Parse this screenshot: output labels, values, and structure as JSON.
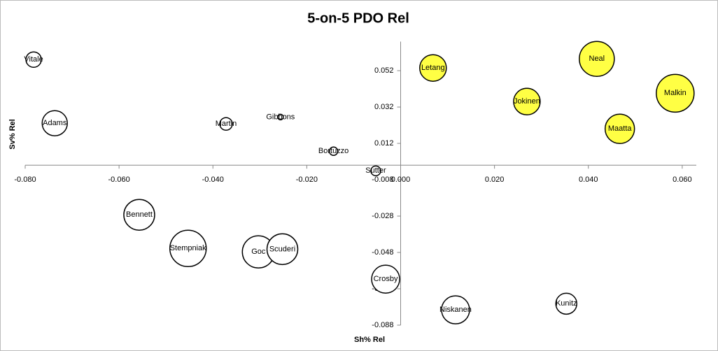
{
  "chart_data": {
    "type": "bubble",
    "title": "5-on-5 PDO Rel",
    "xlabel": "Sh% Rel",
    "ylabel": "Sv% Rel",
    "xlim": [
      -0.08,
      0.063
    ],
    "ylim": [
      -0.088,
      0.068
    ],
    "xticks": [
      {
        "value": -0.08,
        "label": "-0.080"
      },
      {
        "value": -0.06,
        "label": "-0.060"
      },
      {
        "value": -0.04,
        "label": "-0.040"
      },
      {
        "value": -0.02,
        "label": "-0.020"
      },
      {
        "value": 0,
        "label": "0.000"
      },
      {
        "value": 0.02,
        "label": "0.020"
      },
      {
        "value": 0.04,
        "label": "0.040"
      },
      {
        "value": 0.06,
        "label": "0.060"
      }
    ],
    "yticks": [
      -0.088,
      -0.068,
      -0.048,
      -0.028,
      -0.008,
      0.012,
      0.032,
      0.052
    ],
    "series": [
      {
        "labels": [
          "Vitale",
          "Adams",
          "Martin",
          "Gibbons",
          "Bortuzzo",
          "Sutter",
          "Bennett",
          "Stempniak",
          "Goc",
          "Scuderi",
          "Crosby",
          "Niskanen",
          "Kunitz",
          "Letang",
          "Neal",
          "Jokinen",
          "Malkin",
          "Maatta"
        ],
        "x": [
          -0.0782,
          -0.0737,
          -0.0372,
          -0.0256,
          -0.0143,
          -0.0053,
          -0.0557,
          -0.0453,
          -0.0303,
          -0.0252,
          -0.0032,
          0.0117,
          0.0353,
          0.0069,
          0.0418,
          0.0269,
          0.0585,
          0.0467
        ],
        "values": [
          0.0581,
          0.0231,
          0.0227,
          0.0265,
          0.0077,
          -0.0031,
          -0.0273,
          -0.0458,
          -0.0477,
          -0.0462,
          -0.0627,
          -0.0796,
          -0.0762,
          0.0535,
          0.0585,
          0.035,
          0.0396,
          0.02
        ],
        "sizes": [
          121,
          324,
          81,
          16,
          36,
          49,
          484,
          676,
          529,
          484,
          400,
          400,
          225,
          361,
          625,
          361,
          729,
          441
        ],
        "colors": [
          "#ffffff",
          "#ffffff",
          "#ffffff",
          "#ffffff",
          "#ffffff",
          "#ffffff",
          "#ffffff",
          "#ffffff",
          "#ffffff",
          "#ffffff",
          "#ffffff",
          "#ffffff",
          "#ffffff",
          "#ffff44",
          "#ffff44",
          "#ffff44",
          "#ffff44",
          "#ffff44"
        ]
      }
    ]
  }
}
